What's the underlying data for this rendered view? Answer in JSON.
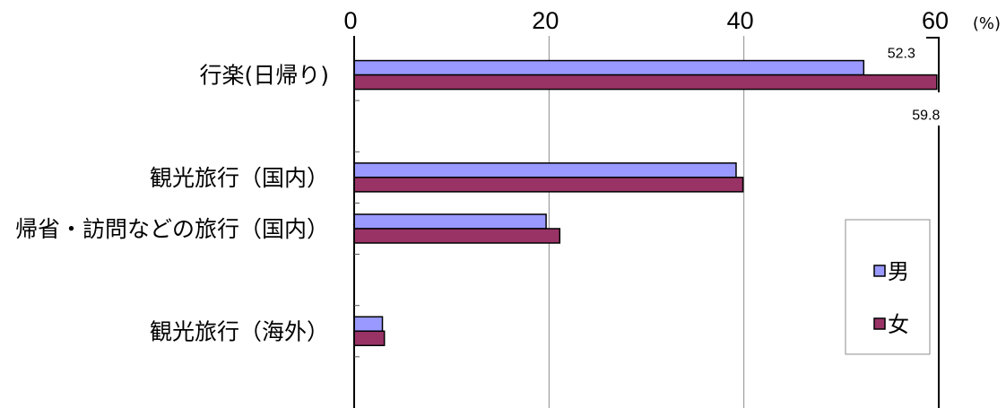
{
  "chart_data": {
    "type": "bar",
    "orientation": "horizontal",
    "title": "",
    "xlabel": "",
    "ylabel": "",
    "xunit": "(%)",
    "xlim": [
      0,
      60
    ],
    "xticks": [
      0,
      20,
      40,
      60
    ],
    "grid": true,
    "legend": "right",
    "categories": [
      "行楽(日帰り)",
      "観光旅行（国内）",
      "帰省・訪問などの旅行（国内）",
      "観光旅行（海外）"
    ],
    "series": [
      {
        "name": "男",
        "color": "#9999FF",
        "values": [
          52.3,
          39.2,
          19.7,
          2.9
        ]
      },
      {
        "name": "女",
        "color": "#993366",
        "values": [
          59.8,
          39.9,
          21.1,
          3.1
        ]
      }
    ],
    "data_labels": [
      {
        "series": 0,
        "category": 0,
        "text": "52.3",
        "position": "above"
      },
      {
        "series": 1,
        "category": 0,
        "text": "59.8",
        "position": "below"
      }
    ]
  }
}
